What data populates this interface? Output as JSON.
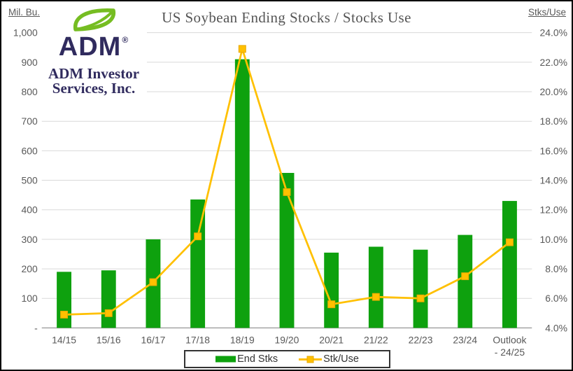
{
  "header": {
    "title": "US Soybean Ending Stocks / Stocks Use",
    "left_axis_label": "Mil. Bu.",
    "right_axis_label": "Stks/Use"
  },
  "logo": {
    "brand": "ADM",
    "registered": "®",
    "company_line1": "ADM Investor",
    "company_line2": "Services, Inc.",
    "leaf_color": "#76BD22",
    "navy_color": "#302B5E"
  },
  "colors": {
    "background": "#FFFFFF",
    "gridline": "#D9D9D9",
    "baseline": "#9E9E9E",
    "axis_text": "#595959",
    "frame_border": "#000000",
    "bar_green": "#0EA10E",
    "line_gold": "#FFC000",
    "marker_edge": "#E7A802"
  },
  "chart_data": {
    "type": "bar",
    "secondary_type": "line",
    "title": "US Soybean Ending Stocks / Stocks Use",
    "grid": true,
    "legend_position": "bottom",
    "categories": [
      "14/15",
      "15/16",
      "16/17",
      "17/18",
      "18/19",
      "19/20",
      "20/21",
      "21/22",
      "22/23",
      "23/24",
      "Outlook - 24/25"
    ],
    "x_labels": [
      [
        "14/15"
      ],
      [
        "15/16"
      ],
      [
        "16/17"
      ],
      [
        "17/18"
      ],
      [
        "18/19"
      ],
      [
        "19/20"
      ],
      [
        "20/21"
      ],
      [
        "21/22"
      ],
      [
        "22/23"
      ],
      [
        "23/24"
      ],
      [
        "Outlook",
        "- 24/25"
      ]
    ],
    "left_axis": {
      "label": "Mil. Bu.",
      "min": 0,
      "max": 1000,
      "tick_step": 100,
      "ticks": [
        "1,000",
        "900",
        "800",
        "700",
        "600",
        "500",
        "400",
        "300",
        "200",
        "100",
        "-"
      ]
    },
    "right_axis": {
      "label": "Stks/Use",
      "min": 4,
      "max": 24,
      "tick_step": 2,
      "ticks": [
        "24.0%",
        "22.0%",
        "20.0%",
        "18.0%",
        "16.0%",
        "14.0%",
        "12.0%",
        "10.0%",
        "8.0%",
        "6.0%",
        "4.0%"
      ]
    },
    "series": [
      {
        "name": "End Stks",
        "chart_type": "bar",
        "axis": "left",
        "unit": "Mil. Bu.",
        "color": "#0EA10E",
        "values": [
          190,
          195,
          300,
          435,
          910,
          525,
          255,
          275,
          265,
          315,
          430
        ]
      },
      {
        "name": "Stk/Use",
        "chart_type": "line",
        "axis": "right",
        "unit": "%",
        "color": "#FFC000",
        "marker": "square",
        "values": [
          4.9,
          5.0,
          7.1,
          10.2,
          22.9,
          13.2,
          5.6,
          6.1,
          6.0,
          7.5,
          9.8
        ]
      }
    ]
  },
  "legend": {
    "end_stks_label": "End Stks",
    "stk_use_label": "Stk/Use"
  }
}
